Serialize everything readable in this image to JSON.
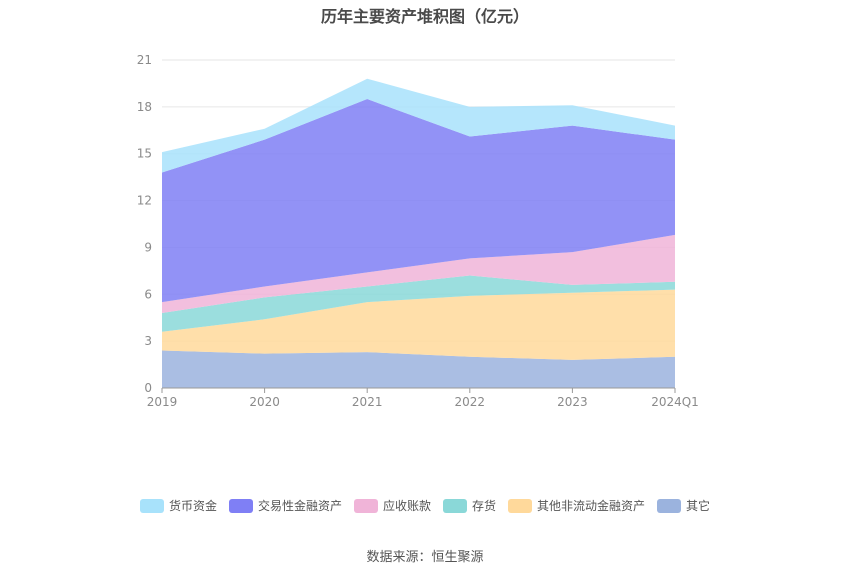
{
  "title": "历年主要资产堆积图（亿元）",
  "source": "数据来源：恒生聚源",
  "chart_data": {
    "type": "area",
    "stacked": true,
    "categories": [
      "2019",
      "2020",
      "2021",
      "2022",
      "2023",
      "2024Q1"
    ],
    "ylim": [
      0,
      21
    ],
    "yticks": [
      0,
      3,
      6,
      9,
      12,
      15,
      18,
      21
    ],
    "grid": true,
    "legend_position": "bottom",
    "series": [
      {
        "name": "其它",
        "color": "#9bb3de",
        "values": [
          2.4,
          2.2,
          2.3,
          2.0,
          1.8,
          2.0
        ]
      },
      {
        "name": "其他非流动金融资产",
        "color": "#ffd99b",
        "values": [
          1.2,
          2.2,
          3.2,
          3.9,
          4.3,
          4.3
        ]
      },
      {
        "name": "存货",
        "color": "#8ad8d8",
        "values": [
          1.2,
          1.4,
          1.0,
          1.3,
          0.5,
          0.5
        ]
      },
      {
        "name": "应收账款",
        "color": "#f0b4d8",
        "values": [
          0.7,
          0.7,
          0.9,
          1.1,
          2.1,
          3.0
        ]
      },
      {
        "name": "交易性金融资产",
        "color": "#7f7ff5",
        "values": [
          8.3,
          9.4,
          11.1,
          7.8,
          8.1,
          6.1
        ]
      },
      {
        "name": "货币资金",
        "color": "#a8e2fb",
        "values": [
          1.3,
          0.7,
          1.3,
          1.9,
          1.3,
          0.9
        ]
      }
    ]
  }
}
